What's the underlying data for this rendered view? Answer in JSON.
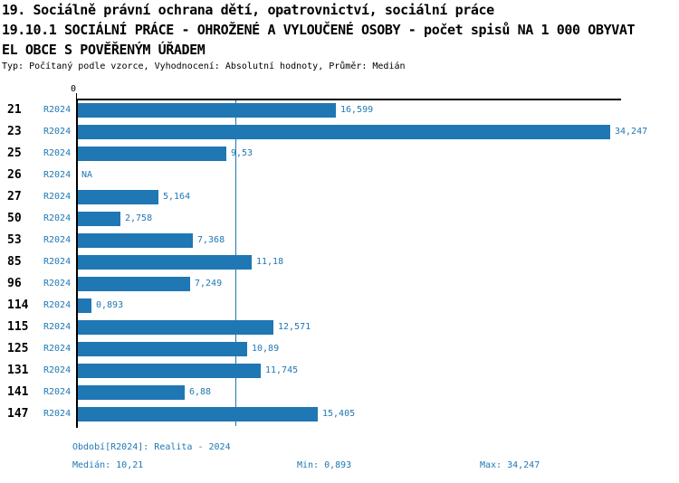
{
  "header": {
    "title_line1": "19. Sociálně právní ochrana dětí, opatrovnictví, sociální práce",
    "title_line2": "19.10.1 SOCIÁLNÍ PRÁCE - OHROŽENÉ A VYLOUČENÉ OSOBY - počet spisů NA 1 000 OBYVAT",
    "title_line3": "EL OBCE S POVĚŘENÝM ÚŘADEM",
    "subtitle": "Typ: Počítaný podle vzorce, Vyhodnocení: Absolutní hodnoty, Průměr: Medián"
  },
  "chart_data": {
    "type": "bar",
    "orientation": "horizontal",
    "title": "19.10.1 SOCIÁLNÍ PRÁCE - OHROŽENÉ A VYLOUČENÉ OSOBY - počet spisů NA 1 000 OBYVATEL OBCE S POVĚŘENÝM ÚŘADEM",
    "series_label": "R2024",
    "categories": [
      "21",
      "23",
      "25",
      "26",
      "27",
      "50",
      "53",
      "85",
      "96",
      "114",
      "115",
      "125",
      "131",
      "141",
      "147"
    ],
    "values": [
      16.599,
      34.247,
      9.53,
      null,
      5.164,
      2.758,
      7.368,
      11.18,
      7.249,
      0.893,
      12.571,
      10.89,
      11.745,
      6.88,
      15.405
    ],
    "value_labels": [
      "16,599",
      "34,247",
      "9,53",
      "NA",
      "5,164",
      "2,758",
      "7,368",
      "11,18",
      "7,249",
      "0,893",
      "12,571",
      "10,89",
      "11,745",
      "6,88",
      "15,405"
    ],
    "xlim": [
      0,
      35
    ],
    "x_tick_labels": [
      "0"
    ],
    "grid": false,
    "legend": "none",
    "median_line_value": 10.21,
    "bar_color": "#1f77b4",
    "label_color": "#1f77b4",
    "stats": {
      "median": 10.21,
      "min": 0.893,
      "max": 34.247
    }
  },
  "footer": {
    "period": "Období[R2024]: Realita - 2024",
    "median": "Medián: 10,21",
    "min": "Min: 0,893",
    "max": "Max: 34,247"
  }
}
